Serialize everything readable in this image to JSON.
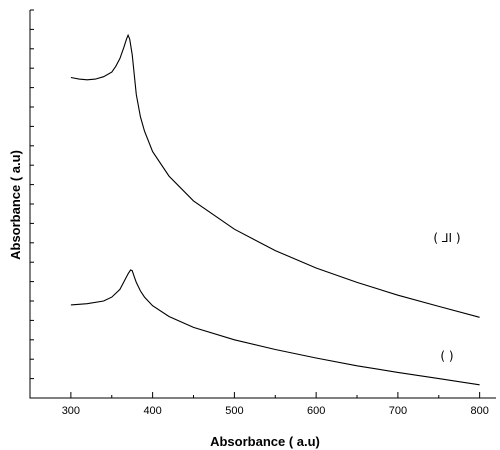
{
  "chart_data": {
    "type": "line",
    "title": "",
    "xlabel": "Absorbance ( a.u)",
    "ylabel": "Absorbance ( a.u)",
    "xlim": [
      250,
      820
    ],
    "ylim": [
      0,
      10
    ],
    "x_ticks": [
      "300",
      "400",
      "500",
      "600",
      "700",
      "800"
    ],
    "grid": false,
    "series": [
      {
        "x": [
          300,
          310,
          320,
          330,
          340,
          350,
          355,
          360,
          365,
          368,
          370,
          372,
          375,
          378,
          380,
          385,
          390,
          400,
          420,
          450,
          500,
          550,
          600,
          650,
          700,
          750,
          800
        ],
        "y": [
          8.26,
          8.22,
          8.2,
          8.22,
          8.28,
          8.4,
          8.55,
          8.75,
          9.05,
          9.25,
          9.35,
          9.25,
          8.85,
          8.25,
          7.82,
          7.25,
          6.88,
          6.35,
          5.72,
          5.08,
          4.35,
          3.8,
          3.35,
          2.98,
          2.65,
          2.36,
          2.08
        ]
      },
      {
        "x": [
          300,
          320,
          340,
          350,
          360,
          365,
          370,
          373,
          375,
          378,
          380,
          385,
          390,
          400,
          420,
          450,
          500,
          550,
          600,
          650,
          700,
          750,
          800
        ],
        "y": [
          2.4,
          2.43,
          2.5,
          2.6,
          2.8,
          3.0,
          3.2,
          3.3,
          3.28,
          3.1,
          2.98,
          2.76,
          2.6,
          2.38,
          2.1,
          1.82,
          1.5,
          1.25,
          1.03,
          0.83,
          0.66,
          0.5,
          0.34
        ]
      }
    ],
    "annotations": [
      {
        "text": "( ⅃I )",
        "x": 760,
        "y": 4.02
      },
      {
        "text": "(   )",
        "x": 760,
        "y": 0.98
      }
    ]
  }
}
